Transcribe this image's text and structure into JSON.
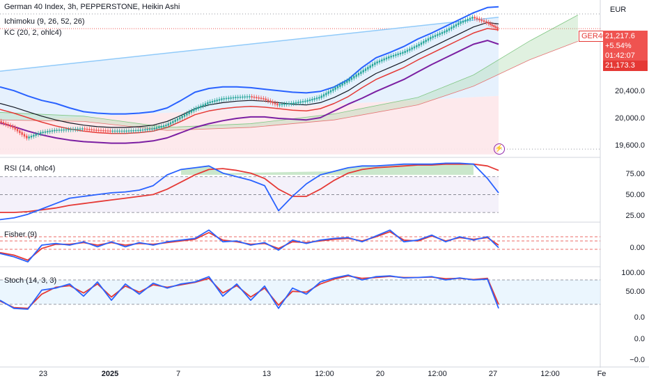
{
  "legend": {
    "title": "German 40 Index, 3h, PEPPERSTONE, Heikin Ashi",
    "ichimoku": "Ichimoku (9, 26, 52, 26)",
    "kc": "KC (20, 2, ohlc4)"
  },
  "currency": "EUR",
  "symbol_tag": "GER40",
  "price_box": {
    "price": "21,217.6",
    "change": "+5.54%",
    "countdown": "01:42:07",
    "low_label": "21,173.3"
  },
  "colors": {
    "up": "#26a69a",
    "down": "#ef5350",
    "kc": "#2962ff",
    "ichi_red": "#e53935",
    "ichi_black": "#131722",
    "ichi_purple": "#7b1fa2",
    "rsi": "#2962ff",
    "rsi_ma": "#e53935",
    "cloud_green": "#a5d6a7",
    "cloud_red": "#f8bbd0"
  },
  "panes": {
    "rsi": {
      "label": "RSI (14, ohlc4)",
      "ticks": [
        "75.00",
        "50.00",
        "25.00"
      ]
    },
    "fisher": {
      "label": "Fisher (9)",
      "ticks": [
        "0.00"
      ]
    },
    "stoch": {
      "label": "Stoch (14, 3, 3)",
      "ticks": [
        "100.00",
        "50.00",
        "0.0",
        "0.0",
        "−0.0"
      ]
    }
  },
  "price_ticks": [
    "20,400.0",
    "20,000.0",
    "19,600.0"
  ],
  "x_ticks": [
    "23",
    "2025",
    "7",
    "13",
    "12:00",
    "20",
    "12:00",
    "27",
    "12:00",
    "Fe"
  ],
  "chart_data": [
    {
      "type": "line",
      "title": "German 40 Index, 3h, PEPPERSTONE, Heikin Ashi",
      "candles": "heikin-ashi",
      "y_range": [
        19500,
        21600
      ],
      "y_ticks": [
        19600,
        20000,
        20400
      ],
      "grid": false,
      "current_price": 21217.6,
      "change_pct": 5.54,
      "marked_low": 21173.3,
      "series": [
        {
          "name": "Close",
          "x": [
            0,
            20,
            40,
            60,
            80,
            100,
            120,
            140,
            160,
            180,
            200,
            220,
            240,
            260,
            280,
            300,
            320,
            340,
            360,
            380,
            400,
            420,
            440,
            460,
            480,
            500,
            520,
            540,
            560,
            580,
            600,
            620,
            640,
            660,
            680,
            700,
            716
          ],
          "values": [
            19980,
            19900,
            19760,
            19830,
            19860,
            19870,
            19880,
            19860,
            19850,
            19850,
            19860,
            19880,
            19930,
            20030,
            20140,
            20230,
            20280,
            20300,
            20310,
            20280,
            20200,
            20220,
            20250,
            20300,
            20410,
            20520,
            20640,
            20760,
            20840,
            20900,
            20990,
            21100,
            21180,
            21290,
            21370,
            21300,
            21217
          ]
        },
        {
          "name": "KC Upper",
          "values": [
            20440,
            20390,
            20320,
            20260,
            20220,
            20160,
            20110,
            20090,
            20080,
            20080,
            20090,
            20110,
            20160,
            20260,
            20370,
            20420,
            20440,
            20440,
            20430,
            20410,
            20390,
            20370,
            20360,
            20380,
            20440,
            20540,
            20700,
            20830,
            20900,
            20980,
            21080,
            21160,
            21250,
            21340,
            21430,
            21500,
            21510
          ]
        },
        {
          "name": "KC Middle",
          "values": [
            20220,
            20170,
            20110,
            20050,
            20000,
            19960,
            19930,
            19910,
            19900,
            19900,
            19910,
            19930,
            19980,
            20060,
            20150,
            20200,
            20230,
            20250,
            20260,
            20250,
            20230,
            20210,
            20200,
            20230,
            20300,
            20390,
            20510,
            20620,
            20700,
            20780,
            20880,
            20970,
            21060,
            21150,
            21240,
            21300,
            21280
          ]
        },
        {
          "name": "KC Lower",
          "values": [
            20000,
            19950,
            19890,
            19840,
            19800,
            19770,
            19750,
            19740,
            19730,
            19730,
            19740,
            19760,
            19800,
            19870,
            19940,
            19990,
            20030,
            20060,
            20080,
            20080,
            20060,
            20050,
            20040,
            20070,
            20160,
            20250,
            20330,
            20420,
            20500,
            20580,
            20680,
            20780,
            20870,
            20960,
            21050,
            21100,
            21050
          ]
        }
      ]
    },
    {
      "type": "line",
      "title": "RSI (14, ohlc4)",
      "y_range": [
        20,
        90
      ],
      "y_ticks": [
        25,
        50,
        75
      ],
      "bands": [
        30,
        70
      ],
      "series": [
        {
          "name": "RSI",
          "x": [
            0,
            20,
            40,
            60,
            80,
            100,
            120,
            140,
            160,
            180,
            200,
            220,
            240,
            260,
            280,
            300,
            320,
            340,
            360,
            380,
            400,
            420,
            440,
            460,
            480,
            500,
            520,
            540,
            560,
            580,
            600,
            620,
            640,
            660,
            680,
            700,
            716
          ],
          "values": [
            22,
            24,
            28,
            34,
            40,
            46,
            48,
            50,
            52,
            53,
            55,
            60,
            72,
            78,
            80,
            82,
            74,
            70,
            66,
            60,
            32,
            48,
            62,
            72,
            76,
            80,
            82,
            82,
            83,
            84,
            84,
            84,
            85,
            85,
            84,
            68,
            52
          ]
        },
        {
          "name": "RSI MA",
          "values": [
            30,
            30,
            31,
            33,
            35,
            38,
            40,
            42,
            44,
            46,
            48,
            50,
            56,
            64,
            72,
            78,
            79,
            77,
            74,
            68,
            56,
            48,
            48,
            56,
            66,
            74,
            78,
            80,
            81,
            82,
            83,
            83,
            84,
            84,
            84,
            82,
            77
          ]
        }
      ]
    },
    {
      "type": "line",
      "title": "Fisher (9)",
      "y_range": [
        -2.5,
        2.5
      ],
      "y_ticks": [
        0
      ],
      "series": [
        {
          "name": "Fisher",
          "x": [
            0,
            20,
            40,
            60,
            80,
            100,
            120,
            140,
            160,
            180,
            200,
            220,
            240,
            260,
            280,
            300,
            320,
            340,
            360,
            380,
            400,
            420,
            440,
            460,
            480,
            500,
            520,
            540,
            560,
            580,
            600,
            620,
            640,
            660,
            680,
            700,
            716
          ],
          "values": [
            -1.0,
            -1.4,
            -2.0,
            0.0,
            0.2,
            0.0,
            0.4,
            -0.2,
            0.4,
            -0.2,
            0.3,
            0.0,
            0.4,
            0.6,
            0.8,
            1.8,
            0.4,
            0.5,
            0.0,
            0.3,
            -0.6,
            0.6,
            0.2,
            0.6,
            0.8,
            0.9,
            0.4,
            1.1,
            1.8,
            0.4,
            0.6,
            1.2,
            0.4,
            1.0,
            0.6,
            1.0,
            -0.3
          ]
        },
        {
          "name": "Trigger",
          "values": [
            -0.9,
            -1.2,
            -1.8,
            -0.4,
            0.1,
            0.1,
            0.3,
            0.0,
            0.3,
            0.0,
            0.2,
            0.1,
            0.3,
            0.5,
            0.7,
            1.5,
            0.6,
            0.4,
            0.1,
            0.2,
            -0.4,
            0.4,
            0.3,
            0.5,
            0.7,
            0.8,
            0.5,
            1.0,
            1.6,
            0.6,
            0.5,
            1.1,
            0.5,
            0.9,
            0.7,
            0.9,
            0.0
          ]
        }
      ]
    },
    {
      "type": "line",
      "title": "Stoch (14, 3, 3)",
      "y_range": [
        0,
        110
      ],
      "y_ticks": [
        0,
        50,
        100
      ],
      "bands": [
        20,
        80
      ],
      "series": [
        {
          "name": "%K",
          "x": [
            0,
            20,
            40,
            60,
            80,
            100,
            120,
            140,
            160,
            180,
            200,
            220,
            240,
            260,
            280,
            300,
            320,
            340,
            360,
            380,
            400,
            420,
            440,
            460,
            480,
            500,
            520,
            540,
            560,
            580,
            600,
            620,
            640,
            660,
            680,
            700,
            716
          ],
          "values": [
            30,
            10,
            8,
            55,
            60,
            70,
            40,
            75,
            30,
            70,
            45,
            72,
            60,
            70,
            75,
            88,
            40,
            70,
            30,
            65,
            10,
            60,
            45,
            75,
            85,
            92,
            80,
            88,
            90,
            85,
            86,
            88,
            80,
            85,
            80,
            82,
            10
          ]
        },
        {
          "name": "%D",
          "values": [
            28,
            12,
            10,
            45,
            62,
            66,
            48,
            70,
            38,
            65,
            50,
            68,
            62,
            68,
            74,
            84,
            48,
            66,
            38,
            60,
            18,
            52,
            50,
            70,
            82,
            90,
            84,
            86,
            89,
            86,
            86,
            87,
            83,
            84,
            81,
            84,
            20
          ]
        }
      ]
    }
  ]
}
